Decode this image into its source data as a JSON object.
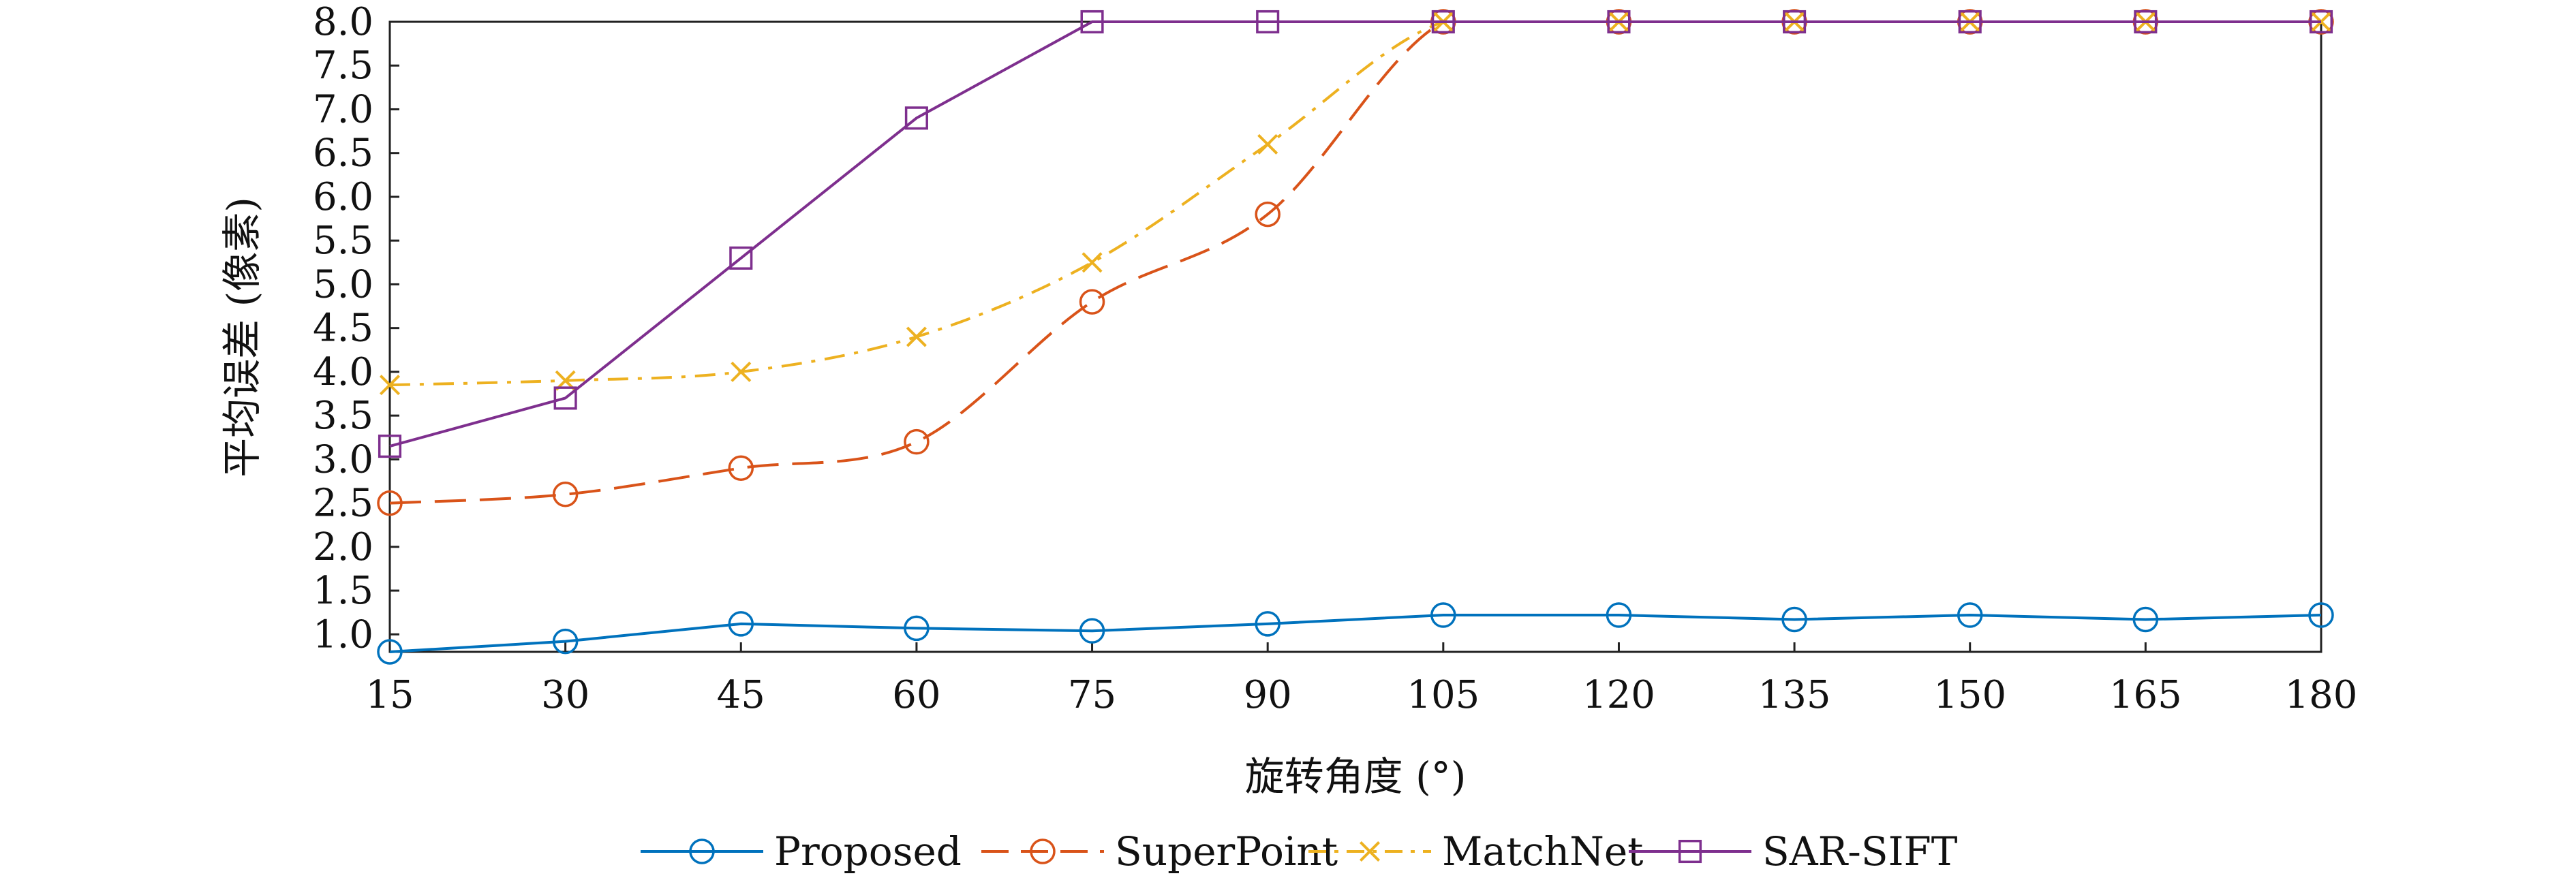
{
  "chart_data": {
    "type": "line",
    "xlabel": "旋转角度 (°)",
    "ylabel": "平均误差 (像素)",
    "x": [
      15,
      30,
      45,
      60,
      75,
      90,
      105,
      120,
      135,
      150,
      165,
      180
    ],
    "xlim": [
      15,
      180
    ],
    "ylim": [
      0.8,
      8.0
    ],
    "yticks": [
      "1.0",
      "1.5",
      "2.0",
      "2.5",
      "3.0",
      "3.5",
      "4.0",
      "4.5",
      "5.0",
      "5.5",
      "6.0",
      "6.5",
      "7.0",
      "7.5",
      "8.0"
    ],
    "grid": false,
    "legend_position": "bottom",
    "series": [
      {
        "name": "Proposed",
        "color": "#0072BD",
        "marker": "circle",
        "line": "solid",
        "values": [
          0.8,
          0.92,
          1.12,
          1.07,
          1.04,
          1.12,
          1.22,
          1.22,
          1.17,
          1.22,
          1.17,
          1.22
        ]
      },
      {
        "name": "SuperPoint",
        "color": "#D95319",
        "marker": "circle",
        "line": "dashed",
        "values": [
          2.5,
          2.6,
          2.9,
          3.2,
          4.8,
          5.8,
          8.0,
          8.0,
          8.0,
          8.0,
          8.0,
          8.0
        ]
      },
      {
        "name": "MatchNet",
        "color": "#EDB120",
        "marker": "x",
        "line": "dashdot",
        "values": [
          3.85,
          3.9,
          4.0,
          4.4,
          5.25,
          6.6,
          8.0,
          8.0,
          8.0,
          8.0,
          8.0,
          8.0
        ]
      },
      {
        "name": "SAR-SIFT",
        "color": "#7E2F8E",
        "marker": "square",
        "line": "solid",
        "values": [
          3.15,
          3.7,
          5.3,
          6.9,
          8.0,
          8.0,
          8.0,
          8.0,
          8.0,
          8.0,
          8.0,
          8.0
        ]
      }
    ]
  }
}
